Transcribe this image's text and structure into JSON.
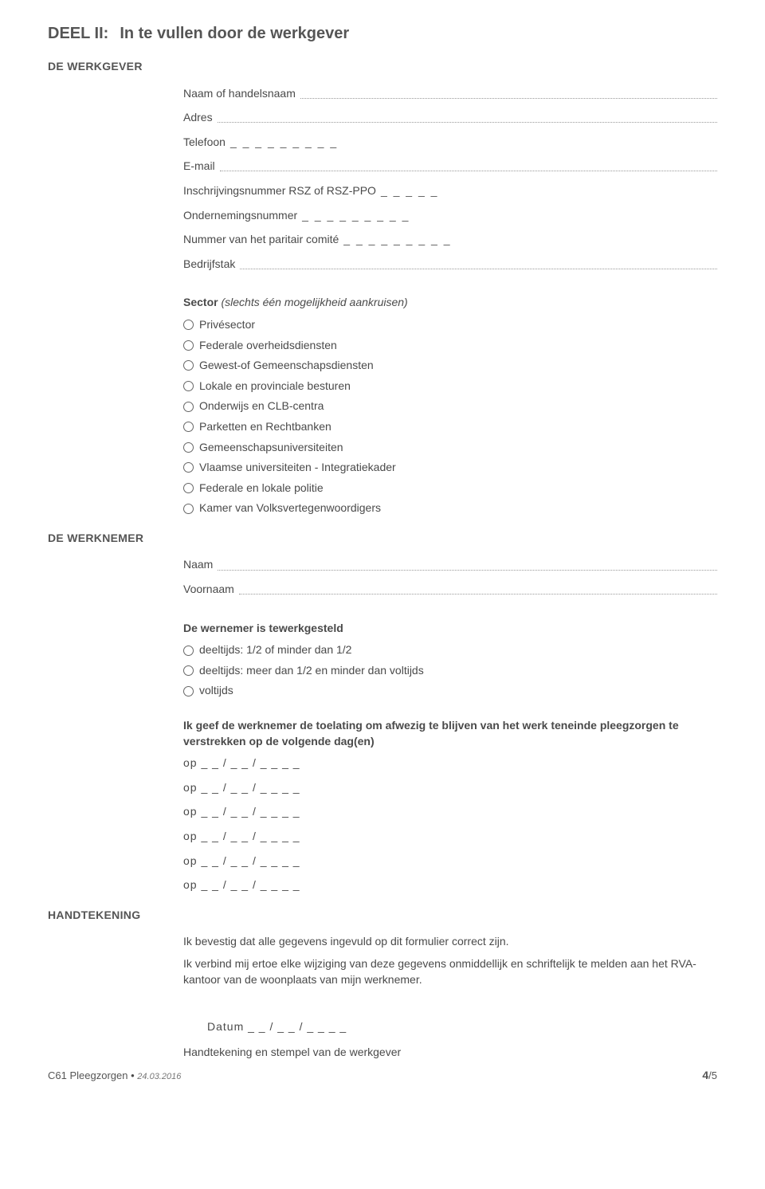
{
  "header": {
    "deel_label": "DEEL II:",
    "deel_title": "In te vullen door de werkgever"
  },
  "werkgever": {
    "section_label": "DE WERKGEVER",
    "fields": {
      "naam": "Naam of handelsnaam",
      "adres": "Adres",
      "telefoon": "Telefoon",
      "telefoon_blanks": "_  _  _  _  _  _  _  _  _",
      "email": "E-mail",
      "rsz": "Inschrijvingsnummer RSZ of RSZ-PPO",
      "rsz_blanks": "_  _  _  _  _",
      "ondernemingsnummer": "Ondernemingsnummer",
      "ondernemingsnummer_blanks": "_  _  _  _  _  _  _  _  _",
      "paritair": "Nummer van het paritair comité",
      "paritair_blanks": "_  _  _  _  _  _  _  _  _",
      "bedrijfstak": "Bedrijfstak"
    },
    "sector": {
      "title": "Sector",
      "hint": "(slechts één mogelijkheid aankruisen)",
      "options": [
        "Privésector",
        "Federale overheidsdiensten",
        "Gewest-of Gemeenschapsdiensten",
        "Lokale en provinciale besturen",
        "Onderwijs en CLB-centra",
        "Parketten en Rechtbanken",
        "Gemeenschapsuniversiteiten",
        "Vlaamse universiteiten - Integratiekader",
        "Federale en lokale politie",
        "Kamer van Volksvertegenwoordigers"
      ]
    }
  },
  "werknemer": {
    "section_label": "DE WERKNEMER",
    "naam": "Naam",
    "voornaam": "Voornaam",
    "tewerkgesteld": {
      "title": "De wernemer is tewerkgesteld",
      "options": [
        "deeltijds: 1/2 of minder dan 1/2",
        "deeltijds: meer dan 1/2 en minder dan voltijds",
        "voltijds"
      ]
    },
    "toelating": {
      "title": "Ik geef de werknemer de toelating om afwezig te blijven van het werk teneinde pleegzorgen te verstrekken op de volgende dag(en)",
      "dates": [
        "op  _  _   /   _  _   /   _  _  _  _",
        "op  _  _   /   _  _   /   _  _  _  _",
        "op  _  _   /   _  _   /   _  _  _  _",
        "op  _  _   /   _  _   /   _  _  _  _",
        "op  _  _   /   _  _   /   _  _  _  _",
        "op  _  _   /   _  _   /   _  _  _  _"
      ]
    }
  },
  "handtekening": {
    "section_label": "HANDTEKENING",
    "confirm": "Ik bevestig dat alle gegevens ingevuld op dit formulier correct zijn.",
    "declare": "Ik verbind mij ertoe elke wijziging van deze gegevens onmiddellijk en schriftelijk te melden aan het RVA-kantoor van de woonplaats van mijn werknemer.",
    "datum": "Datum   _  _   /   _  _   /   _  _  _  _",
    "sign_label": "Handtekening en stempel van de werkgever"
  },
  "footer": {
    "doc_id": "C61 Pleegzorgen",
    "dot": "•",
    "doc_date": "24.03.2016",
    "page_cur": "4",
    "page_sep": "/5"
  }
}
